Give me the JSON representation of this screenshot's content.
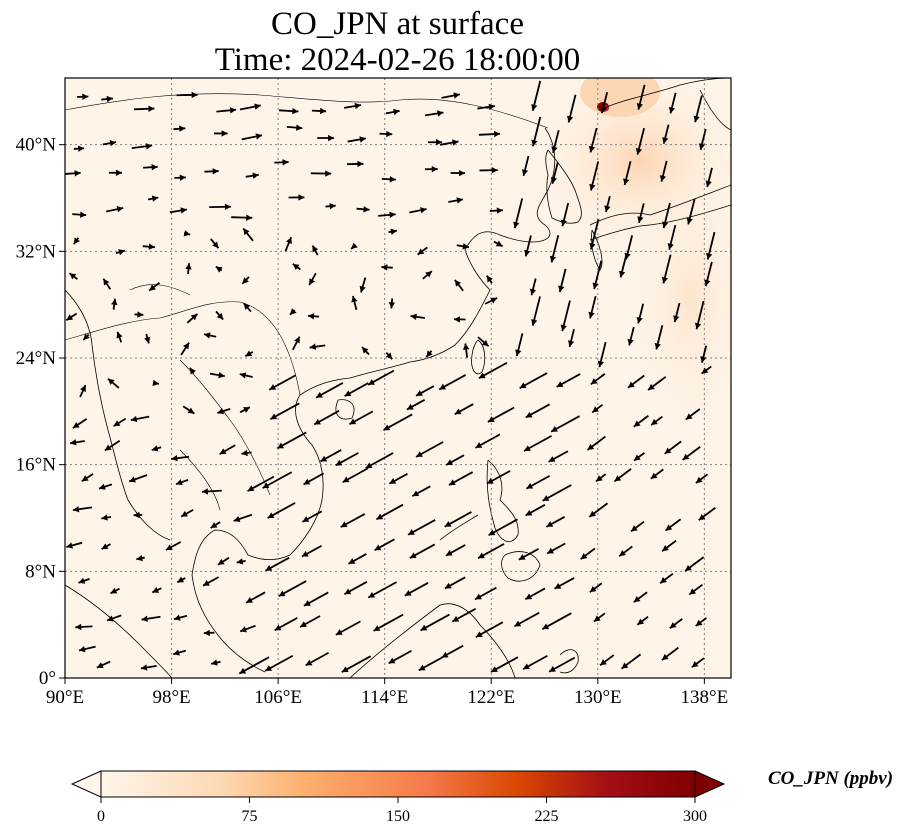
{
  "title": {
    "line1": "CO_JPN at surface",
    "line2": "Time: 2024-02-26 18:00:00"
  },
  "map": {
    "lon_range": [
      90,
      140
    ],
    "lat_range": [
      0,
      45
    ],
    "lon_ticks": [
      "90°E",
      "98°E",
      "106°E",
      "114°E",
      "122°E",
      "130°E",
      "138°E"
    ],
    "lat_ticks": [
      "0°",
      "8°N",
      "16°N",
      "24°N",
      "32°N",
      "40°N"
    ],
    "field_color_low": "#fff5eb",
    "field_color_high": "#7f0000",
    "hotspot": {
      "lon": 130.5,
      "lat": 42.8,
      "label": "high CO near Vladivostok / Tumen region"
    },
    "wind": {
      "prevailing": "northeasterly monsoon over South China Sea, northerly off Japan, westerly over north China"
    }
  },
  "colorbar": {
    "label": "CO_JPN (ppbv)",
    "ticks": [
      "0",
      "75",
      "150",
      "225",
      "300"
    ],
    "min": 0,
    "max": 300,
    "extend": "both",
    "colors": [
      "#fff5eb",
      "#fdd9b4",
      "#fdae6b",
      "#f5794a",
      "#d94801",
      "#a50f15",
      "#7f0000"
    ]
  }
}
